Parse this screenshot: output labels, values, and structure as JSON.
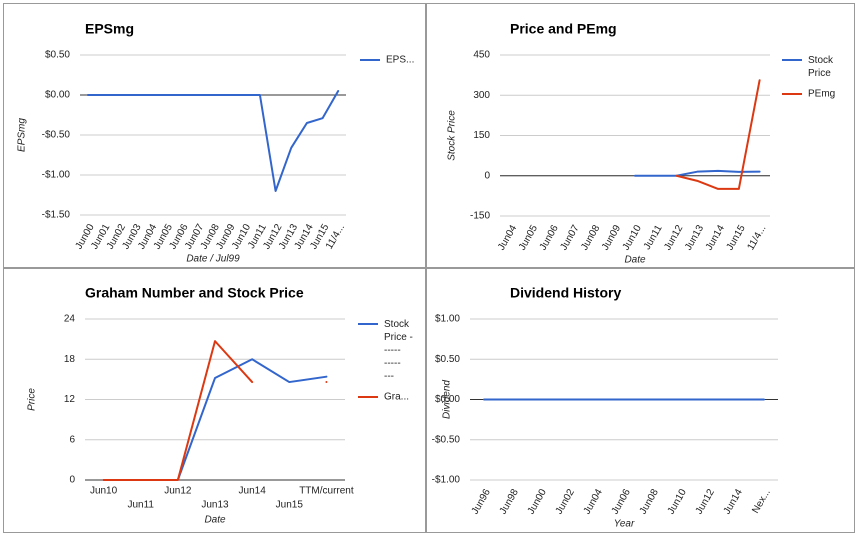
{
  "chart_data": [
    {
      "type": "line",
      "title": "EPSmg",
      "x_label": "Date / Jul99",
      "y_label": "EPSmg",
      "categories": [
        "Jun00",
        "Jun01",
        "Jun02",
        "Jun03",
        "Jun04",
        "Jun05",
        "Jun06",
        "Jun07",
        "Jun08",
        "Jun09",
        "Jun10",
        "Jun11",
        "Jun12",
        "Jun13",
        "Jun14",
        "Jun15",
        "11/4..."
      ],
      "series": [
        {
          "name": "EPS...",
          "color": "#3366cc",
          "values": [
            0,
            0,
            0,
            0,
            0,
            0,
            0,
            0,
            0,
            0,
            0,
            0,
            -1.2,
            -0.66,
            -0.35,
            -0.29,
            0.05
          ]
        }
      ],
      "ylim": [
        -1.5,
        0.5
      ],
      "yticks": [
        {
          "value": 0.5,
          "label": "$0.50"
        },
        {
          "value": 0,
          "label": "$0.00"
        },
        {
          "value": -0.5,
          "label": "-$0.50"
        },
        {
          "value": -1,
          "label": "-$1.00"
        },
        {
          "value": -1.5,
          "label": "-$1.50"
        }
      ],
      "grid": true,
      "legend": "right"
    },
    {
      "type": "line",
      "title": "Price and PEmg",
      "x_label": "Date",
      "y_label": "Stock Price",
      "categories": [
        "Jun04",
        "Jun05",
        "Jun06",
        "Jun07",
        "Jun08",
        "Jun09",
        "Jun10",
        "Jun11",
        "Jun12",
        "Jun13",
        "Jun14",
        "Jun15",
        "11/4..."
      ],
      "series": [
        {
          "name": "Stock Price",
          "color": "#3366cc",
          "values": [
            null,
            null,
            null,
            null,
            null,
            null,
            0,
            0,
            0,
            15.2,
            18,
            14.6,
            15.4
          ]
        },
        {
          "name": "PEmg",
          "color": "#dc3912",
          "values": [
            null,
            null,
            null,
            null,
            null,
            null,
            null,
            null,
            0,
            -19,
            -49,
            -49,
            356
          ]
        }
      ],
      "ylim": [
        -150,
        450
      ],
      "yticks": [
        450,
        300,
        150,
        0,
        -150
      ],
      "grid": true,
      "legend": "right"
    },
    {
      "type": "line",
      "title": "Graham Number and Stock Price",
      "x_label": "Date",
      "y_label": "Price",
      "categories": [
        "Jun10",
        "Jun11",
        "Jun12",
        "Jun13",
        "Jun14",
        "Jun15",
        "TTM/current"
      ],
      "series": [
        {
          "name": "Stock Price - ----- ----- ---",
          "color": "#3366cc",
          "values": [
            0,
            0,
            0,
            15.2,
            18,
            14.6,
            15.4
          ]
        },
        {
          "name": "Gra...",
          "color": "#dc3912",
          "values": [
            0,
            0,
            0,
            20.7,
            14.6,
            null,
            14.6
          ]
        }
      ],
      "ylim": [
        0,
        24
      ],
      "yticks": [
        24,
        18,
        12,
        6,
        0
      ],
      "grid": true,
      "legend": "right"
    },
    {
      "type": "line",
      "title": "Dividend History",
      "x_label": "Year",
      "y_label": "Dividend",
      "categories": [
        "Jun96",
        "Jun98",
        "Jun00",
        "Jun02",
        "Jun04",
        "Jun06",
        "Jun08",
        "Jun10",
        "Jun12",
        "Jun14",
        "Nex..."
      ],
      "series": [
        {
          "color": "#3366cc",
          "values": [
            0,
            0,
            0,
            0,
            0,
            0,
            0,
            0,
            0,
            0,
            0
          ]
        }
      ],
      "ylim": [
        -1,
        1
      ],
      "yticks": [
        {
          "value": 1,
          "label": "$1.00"
        },
        {
          "value": 0.5,
          "label": "$0.50"
        },
        {
          "value": 0,
          "label": "$0.00"
        },
        {
          "value": -0.5,
          "label": "-$0.50"
        },
        {
          "value": -1,
          "label": "-$1.00"
        }
      ],
      "grid": true
    }
  ]
}
